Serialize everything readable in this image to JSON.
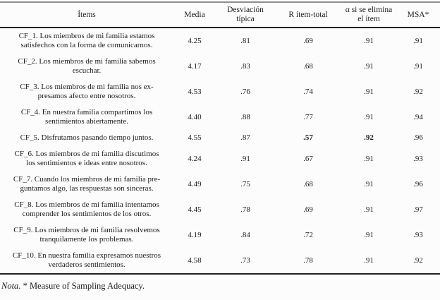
{
  "table": {
    "columns": [
      [
        "Ítems"
      ],
      [
        "Media"
      ],
      [
        "Desviación",
        "típica"
      ],
      [
        "R ítem-total"
      ],
      [
        "α si se elimina",
        "el ítem"
      ],
      [
        "MSA*"
      ]
    ],
    "rows": [
      {
        "item": [
          "CF_1. Los miembros de mi familia estamos",
          "satisfechos con la forma de comunicarnos."
        ],
        "media": "4.25",
        "sd": ".81",
        "r": ".69",
        "alpha": ".91",
        "msa": ".91"
      },
      {
        "item": [
          "CF_2. Los miembros de mi familia sabemos",
          "escuchar."
        ],
        "media": "4.17",
        "sd": ".83",
        "r": ".68",
        "alpha": ".91",
        "msa": ".91"
      },
      {
        "item": [
          "CF_3. Los miembros de mi familia nos ex-",
          "presamos afecto entre nosotros."
        ],
        "media": "4.53",
        "sd": ".76",
        "r": ".74",
        "alpha": ".91",
        "msa": ".92"
      },
      {
        "item": [
          "CF_4. En nuestra familia compartimos los",
          "sentimientos abiertamente."
        ],
        "media": "4.40",
        "sd": ".88",
        "r": ".77",
        "alpha": ".91",
        "msa": ".94"
      },
      {
        "item": [
          "CF_5. Disfrutamos pasando tiempo juntos."
        ],
        "media": "4.55",
        "sd": ".87",
        "r": ".57",
        "alpha": ".92",
        "msa": ".96"
      },
      {
        "item": [
          "CF_6. Los miembros de mi familia discutimos",
          "los sentimientos e ideas entre nosotros."
        ],
        "media": "4.24",
        "sd": ".91",
        "r": ".67",
        "alpha": ".91",
        "msa": ".93"
      },
      {
        "item": [
          "CF_7. Cuando los miembros de mi familia pre-",
          "guntamos algo, las respuestas son sinceras."
        ],
        "media": "4.49",
        "sd": ".75",
        "r": ".68",
        "alpha": ".91",
        "msa": ".96"
      },
      {
        "item": [
          "CF_8. Los miembros de mi familia intentamos",
          "comprender los sentimientos de los otros."
        ],
        "media": "4.45",
        "sd": ".78",
        "r": ".69",
        "alpha": ".91",
        "msa": ".97"
      },
      {
        "item": [
          "CF_9. Los miembros de mi familia resolvemos",
          "tranquilamente los problemas."
        ],
        "media": "4.19",
        "sd": ".84",
        "r": ".72",
        "alpha": ".91",
        "msa": ".93"
      },
      {
        "item": [
          "CF_10. En nuestra familia expresamos nuestros",
          "verdaderos sentimientos."
        ],
        "media": "4.58",
        "sd": ".73",
        "r": ".78",
        "alpha": ".91",
        "msa": ".92"
      }
    ],
    "note": {
      "label": "Nota.",
      "text": " * Measure of Sampling Adequacy."
    }
  }
}
